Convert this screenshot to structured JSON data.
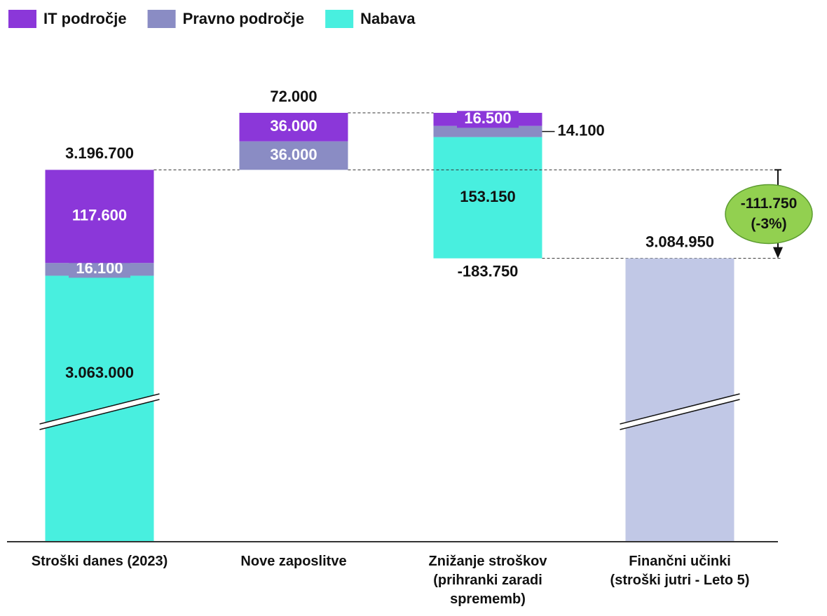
{
  "chart_data": {
    "type": "waterfall",
    "categories": [
      "Stroški danes (2023)",
      "Nove zaposlitve",
      "Znižanje stroškov\n(prihranki zaradi\nsprememb)",
      "Finančni učinki\n(stroški jutri - Leto 5)"
    ],
    "series": [
      {
        "name": "IT področje",
        "color": "#8b37d9",
        "values": [
          117600,
          36000,
          16500,
          null
        ],
        "value_labels": [
          "117.600",
          "36.000",
          "16.500",
          null
        ]
      },
      {
        "name": "Pravno področje",
        "color": "#8a8cc4",
        "values": [
          16100,
          36000,
          14100,
          null
        ],
        "value_labels": [
          "16.100",
          "36.000",
          "14.100",
          null
        ]
      },
      {
        "name": "Nabava",
        "color": "#48efdf",
        "values": [
          3063000,
          null,
          153150,
          null
        ],
        "value_labels": [
          "3.063.000",
          null,
          "153.150",
          null
        ]
      }
    ],
    "stack_order": [
      "Nabava",
      "Pravno področje",
      "IT področje"
    ],
    "totals": [
      3196700,
      72000,
      -183750,
      3084950
    ],
    "total_labels": [
      "3.196.700",
      "72.000",
      "-183.750",
      "3.084.950"
    ],
    "total_color": "#c1c8e6",
    "axis_break": true,
    "annotation": {
      "value": -111750,
      "label": "-111.750",
      "percent": -3,
      "sub_label": "(-3%)",
      "color": "#92d050"
    }
  }
}
